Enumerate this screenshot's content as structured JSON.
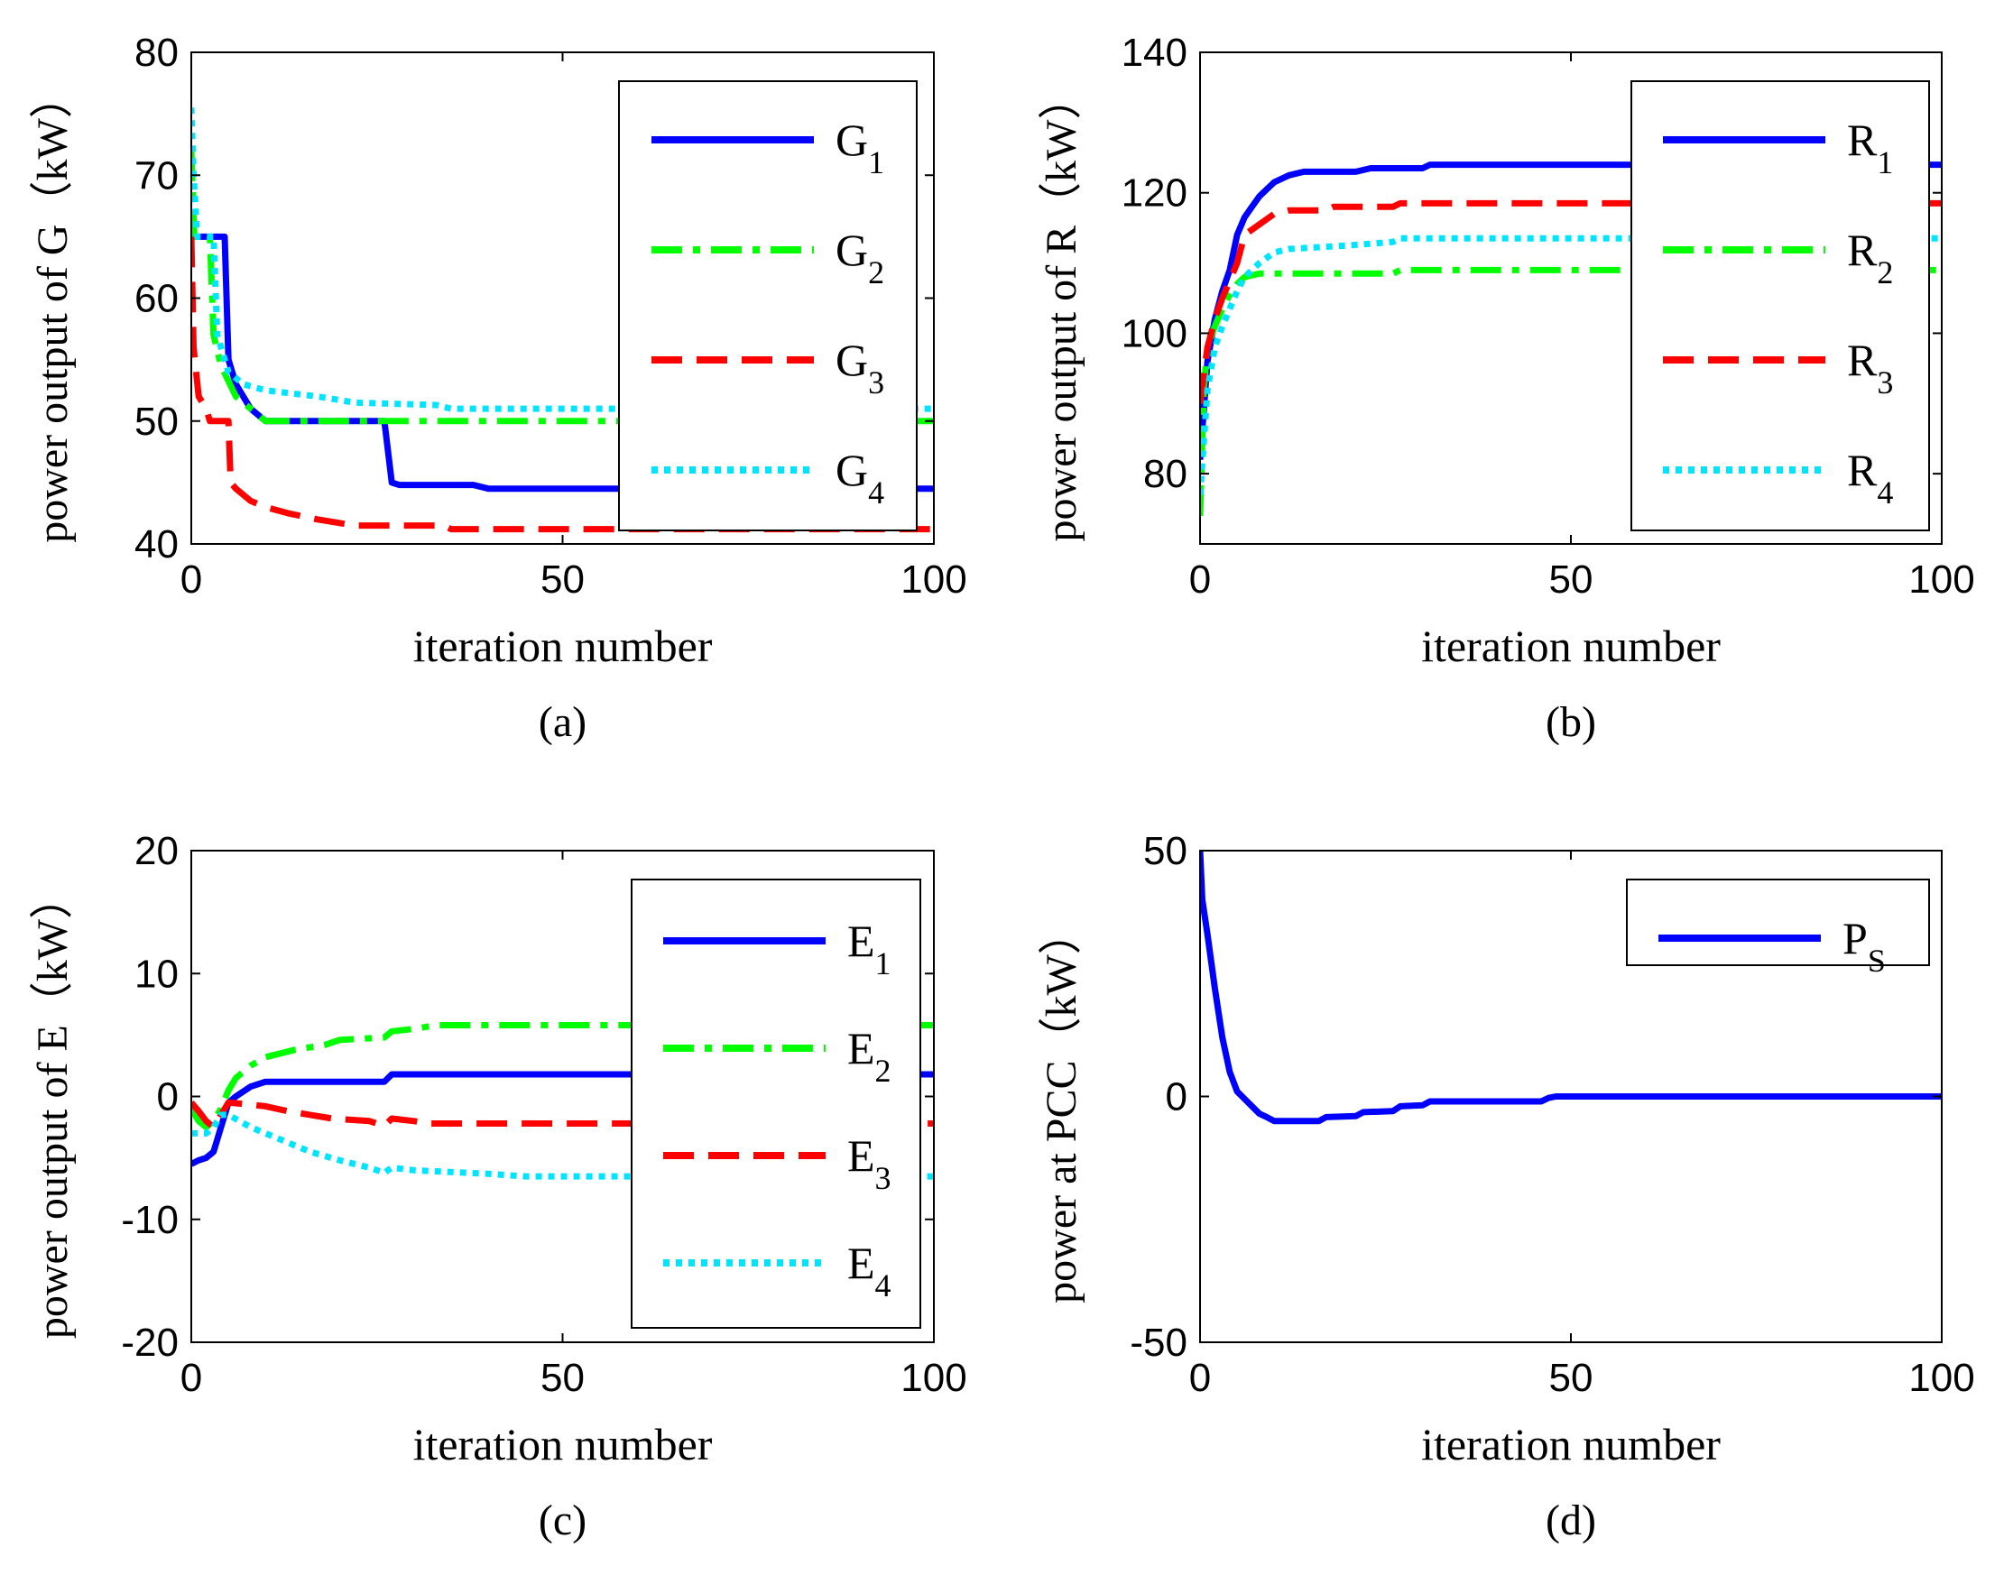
{
  "chart_data": [
    {
      "id": "a",
      "type": "line",
      "caption": "(a)",
      "xlabel": "iteration number",
      "ylabel": "power output of G（kW）",
      "xlim": [
        0,
        100
      ],
      "ylim": [
        40,
        80
      ],
      "xticks": [
        "0",
        "50",
        "100"
      ],
      "yticks": [
        "40",
        "50",
        "60",
        "70",
        "80"
      ],
      "legend_position": "top-right",
      "series": [
        {
          "name": "G",
          "sub": "1",
          "color": "#0000ff",
          "style": "solid",
          "points": [
            [
              0,
              65
            ],
            [
              4.5,
              65
            ],
            [
              5,
              55
            ],
            [
              6,
              53
            ],
            [
              8,
              51
            ],
            [
              10,
              50
            ],
            [
              26,
              50
            ],
            [
              27,
              45
            ],
            [
              28,
              44.8
            ],
            [
              38,
              44.8
            ],
            [
              40,
              44.5
            ],
            [
              100,
              44.5
            ]
          ]
        },
        {
          "name": "G",
          "sub": "2",
          "color": "#00ff00",
          "style": "dashdot",
          "points": [
            [
              0,
              72
            ],
            [
              0.4,
              65
            ],
            [
              2.5,
              65
            ],
            [
              3,
              57
            ],
            [
              4,
              54.5
            ],
            [
              6,
              52
            ],
            [
              8,
              51
            ],
            [
              10,
              50
            ],
            [
              100,
              50
            ]
          ]
        },
        {
          "name": "G",
          "sub": "3",
          "color": "#ff0000",
          "style": "dashed",
          "points": [
            [
              0,
              65
            ],
            [
              0.3,
              56
            ],
            [
              1,
              52
            ],
            [
              2,
              51
            ],
            [
              2.5,
              50
            ],
            [
              5,
              50
            ],
            [
              5.3,
              45
            ],
            [
              6,
              44.5
            ],
            [
              8,
              43.5
            ],
            [
              10,
              43
            ],
            [
              13,
              42.5
            ],
            [
              17,
              42
            ],
            [
              22,
              41.5
            ],
            [
              34,
              41.5
            ],
            [
              35,
              41.2
            ],
            [
              100,
              41.2
            ]
          ]
        },
        {
          "name": "G",
          "sub": "4",
          "color": "#00e5ff",
          "style": "dotted",
          "points": [
            [
              0,
              75.5
            ],
            [
              0.3,
              70
            ],
            [
              0.8,
              65
            ],
            [
              3,
              65
            ],
            [
              3.5,
              57
            ],
            [
              5,
              54
            ],
            [
              7,
              53
            ],
            [
              10,
              52.5
            ],
            [
              17,
              52
            ],
            [
              22,
              51.5
            ],
            [
              33,
              51.3
            ],
            [
              35,
              51
            ],
            [
              100,
              51
            ]
          ]
        }
      ]
    },
    {
      "id": "b",
      "type": "line",
      "caption": "(b)",
      "xlabel": "iteration number",
      "ylabel": "power output of R（kW）",
      "xlim": [
        0,
        100
      ],
      "ylim": [
        70,
        140
      ],
      "xticks": [
        "0",
        "50",
        "100"
      ],
      "yticks": [
        "80",
        "100",
        "120",
        "140"
      ],
      "legend_position": "top-right",
      "series": [
        {
          "name": "R",
          "sub": "1",
          "color": "#0000ff",
          "style": "solid",
          "points": [
            [
              0,
              82
            ],
            [
              1,
              96
            ],
            [
              2,
              102
            ],
            [
              3,
              106
            ],
            [
              4,
              109
            ],
            [
              5,
              114
            ],
            [
              6,
              116.5
            ],
            [
              7,
              118
            ],
            [
              8,
              119.5
            ],
            [
              10,
              121.5
            ],
            [
              12,
              122.5
            ],
            [
              14,
              123
            ],
            [
              21,
              123
            ],
            [
              23,
              123.5
            ],
            [
              30,
              123.5
            ],
            [
              31,
              124
            ],
            [
              100,
              124
            ]
          ]
        },
        {
          "name": "R",
          "sub": "2",
          "color": "#00ff00",
          "style": "dashdot",
          "points": [
            [
              0,
              74
            ],
            [
              0.5,
              92
            ],
            [
              1,
              98
            ],
            [
              2,
              101
            ],
            [
              3,
              103.5
            ],
            [
              4,
              105.5
            ],
            [
              5,
              107
            ],
            [
              6,
              108
            ],
            [
              8,
              108.5
            ],
            [
              26,
              108.5
            ],
            [
              27,
              109
            ],
            [
              100,
              109
            ]
          ]
        },
        {
          "name": "R",
          "sub": "3",
          "color": "#ff0000",
          "style": "dashed",
          "points": [
            [
              0,
              90
            ],
            [
              1,
              98
            ],
            [
              2,
              102
            ],
            [
              3,
              105
            ],
            [
              4,
              107.5
            ],
            [
              5,
              110
            ],
            [
              6,
              114
            ],
            [
              8,
              115.5
            ],
            [
              10,
              117
            ],
            [
              12,
              117.5
            ],
            [
              17,
              117.5
            ],
            [
              18,
              118
            ],
            [
              26,
              118
            ],
            [
              27,
              118.5
            ],
            [
              100,
              118.5
            ]
          ]
        },
        {
          "name": "R",
          "sub": "4",
          "color": "#00e5ff",
          "style": "dotted",
          "points": [
            [
              0,
              77
            ],
            [
              1,
              92
            ],
            [
              2,
              98
            ],
            [
              3,
              101
            ],
            [
              4,
              103.5
            ],
            [
              5,
              106
            ],
            [
              6,
              108
            ],
            [
              8,
              110
            ],
            [
              10,
              111.5
            ],
            [
              12,
              112
            ],
            [
              20,
              112.5
            ],
            [
              26,
              113
            ],
            [
              27,
              113.5
            ],
            [
              100,
              113.5
            ]
          ]
        }
      ]
    },
    {
      "id": "c",
      "type": "line",
      "caption": "(c)",
      "xlabel": "iteration number",
      "ylabel": "power output of E（kW）",
      "xlim": [
        0,
        100
      ],
      "ylim": [
        -20,
        20
      ],
      "xticks": [
        "0",
        "50",
        "100"
      ],
      "yticks": [
        "-20",
        "-10",
        "0",
        "10",
        "20"
      ],
      "legend_position": "top-right",
      "series": [
        {
          "name": "E",
          "sub": "1",
          "color": "#0000ff",
          "style": "solid",
          "points": [
            [
              0,
              -5.5
            ],
            [
              1,
              -5.2
            ],
            [
              2,
              -5
            ],
            [
              3,
              -4.5
            ],
            [
              4,
              -2.5
            ],
            [
              5,
              -0.5
            ],
            [
              6,
              0
            ],
            [
              8,
              0.8
            ],
            [
              10,
              1.2
            ],
            [
              26,
              1.2
            ],
            [
              27,
              1.8
            ],
            [
              100,
              1.8
            ]
          ]
        },
        {
          "name": "E",
          "sub": "2",
          "color": "#00ff00",
          "style": "dashdot",
          "points": [
            [
              0,
              -1
            ],
            [
              1,
              -2
            ],
            [
              2,
              -2.5
            ],
            [
              3,
              -2
            ],
            [
              4,
              -1
            ],
            [
              5,
              0.5
            ],
            [
              6,
              1.5
            ],
            [
              8,
              2.5
            ],
            [
              10,
              3.2
            ],
            [
              14,
              3.8
            ],
            [
              18,
              4.2
            ],
            [
              20,
              4.6
            ],
            [
              26,
              4.8
            ],
            [
              27,
              5.3
            ],
            [
              30,
              5.5
            ],
            [
              33,
              5.8
            ],
            [
              100,
              5.8
            ]
          ]
        },
        {
          "name": "E",
          "sub": "3",
          "color": "#ff0000",
          "style": "dashed",
          "points": [
            [
              0,
              -0.5
            ],
            [
              1,
              -1.2
            ],
            [
              2,
              -2
            ],
            [
              3,
              -2.5
            ],
            [
              4,
              -1.5
            ],
            [
              5,
              -0.5
            ],
            [
              7,
              -0.6
            ],
            [
              10,
              -0.8
            ],
            [
              13,
              -1.2
            ],
            [
              16,
              -1.5
            ],
            [
              19,
              -1.8
            ],
            [
              24,
              -2
            ],
            [
              26,
              -2.4
            ],
            [
              27,
              -1.8
            ],
            [
              30,
              -2
            ],
            [
              32,
              -2.2
            ],
            [
              100,
              -2.2
            ]
          ]
        },
        {
          "name": "E",
          "sub": "4",
          "color": "#00e5ff",
          "style": "dotted",
          "points": [
            [
              0,
              -3
            ],
            [
              2,
              -3
            ],
            [
              3,
              -2.5
            ],
            [
              4,
              -1.5
            ],
            [
              5,
              -1.5
            ],
            [
              8,
              -2.5
            ],
            [
              12,
              -3.5
            ],
            [
              16,
              -4.5
            ],
            [
              20,
              -5.2
            ],
            [
              24,
              -5.8
            ],
            [
              26,
              -6.2
            ],
            [
              27,
              -5.8
            ],
            [
              30,
              -6
            ],
            [
              40,
              -6.3
            ],
            [
              45,
              -6.5
            ],
            [
              100,
              -6.5
            ]
          ]
        }
      ]
    },
    {
      "id": "d",
      "type": "line",
      "caption": "(d)",
      "xlabel": "iteration number",
      "ylabel": "power at PCC（kW）",
      "xlim": [
        0,
        100
      ],
      "ylim": [
        -50,
        50
      ],
      "xticks": [
        "0",
        "50",
        "100"
      ],
      "yticks": [
        "-50",
        "0",
        "50"
      ],
      "legend_position": "top-right",
      "series": [
        {
          "name": "P",
          "sub": "S",
          "color": "#0000ff",
          "style": "solid",
          "points": [
            [
              0,
              50
            ],
            [
              0.3,
              40
            ],
            [
              1,
              33
            ],
            [
              2,
              22
            ],
            [
              3,
              12
            ],
            [
              4,
              5
            ],
            [
              5,
              1
            ],
            [
              6,
              -0.5
            ],
            [
              7,
              -2
            ],
            [
              8,
              -3.5
            ],
            [
              9,
              -4.2
            ],
            [
              10,
              -5
            ],
            [
              16,
              -5
            ],
            [
              17,
              -4.2
            ],
            [
              21,
              -4
            ],
            [
              22,
              -3.2
            ],
            [
              26,
              -3
            ],
            [
              27,
              -2
            ],
            [
              30,
              -1.8
            ],
            [
              31,
              -1
            ],
            [
              46,
              -1
            ],
            [
              47,
              -0.3
            ],
            [
              48,
              0
            ],
            [
              100,
              0
            ]
          ]
        }
      ]
    }
  ]
}
